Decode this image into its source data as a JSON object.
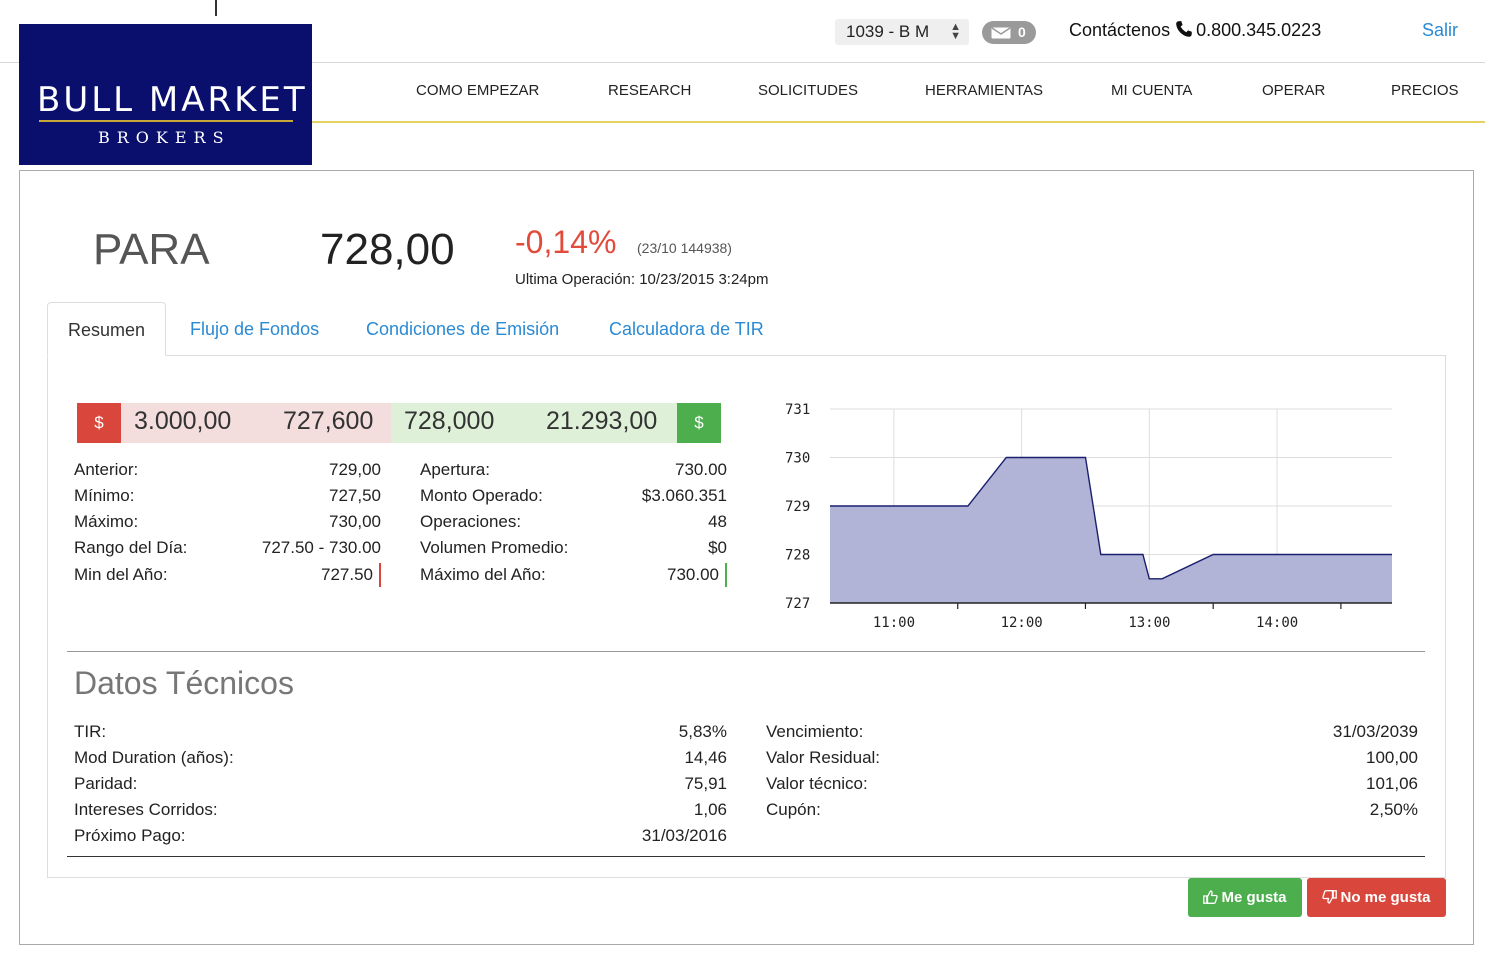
{
  "header": {
    "account": "1039 - B M",
    "messages_count": "0",
    "contact_label": "Contáctenos",
    "phone": "0.800.345.0223",
    "logout": "Salir"
  },
  "logo": {
    "main": "BULL MARKET",
    "sub": "BROKERS",
    "bg_color": "#0a0f6e",
    "accent": "#c8a838"
  },
  "nav": [
    "COMO EMPEZAR",
    "RESEARCH",
    "SOLICITUDES",
    "HERRAMIENTAS",
    "MI CUENTA",
    "OPERAR",
    "PRECIOS"
  ],
  "instrument": {
    "ticker": "PARA",
    "price": "728,00",
    "change": "-0,14%",
    "change_meta": "(23/10 144938)",
    "last_operation": "Ultima Operación: 10/23/2015 3:24pm"
  },
  "tabs": [
    "Resumen",
    "Flujo de Fondos",
    "Condiciones de Emisión",
    "Calculadora de TIR"
  ],
  "quote": {
    "sell_icon": "$",
    "bid_qty": "3.000,00",
    "bid_price": "727,600",
    "ask_price": "728,000",
    "ask_qty": "21.293,00",
    "buy_icon": "$"
  },
  "stats_left": [
    {
      "label": "Anterior:",
      "value": "729,00"
    },
    {
      "label": "Mínimo:",
      "value": "727,50"
    },
    {
      "label": "Máximo:",
      "value": "730,00"
    },
    {
      "label": "Rango del Día:",
      "value": "727.50 - 730.00"
    },
    {
      "label": "Min del Año:",
      "value": "727.50"
    }
  ],
  "stats_right": [
    {
      "label": "Apertura:",
      "value": "730.00"
    },
    {
      "label": "Monto Operado:",
      "value": "$3.060.351"
    },
    {
      "label": "Operaciones:",
      "value": "48"
    },
    {
      "label": "Volumen Promedio:",
      "value": "$0"
    },
    {
      "label": "Máximo del Año:",
      "value": "730.00"
    }
  ],
  "chart_data": {
    "type": "area",
    "ylim": [
      727,
      731
    ],
    "yticks": [
      "727",
      "728",
      "729",
      "730",
      "731"
    ],
    "xticks": [
      "11:00",
      "12:00",
      "13:00",
      "14:00"
    ],
    "xlim": [
      10.5,
      14.9
    ],
    "x": [
      10.5,
      11.58,
      11.88,
      12.5,
      12.62,
      12.95,
      13.0,
      13.1,
      13.5,
      14.9
    ],
    "values": [
      729.0,
      729.0,
      730.0,
      730.0,
      728.0,
      728.0,
      727.5,
      727.5,
      728.0,
      728.0
    ],
    "color": "#b1b4d6",
    "line_color": "#1a1f6e",
    "grid": true
  },
  "technical": {
    "title": "Datos Técnicos",
    "left": [
      {
        "label": "TIR:",
        "value": "5,83%"
      },
      {
        "label": "Mod Duration (años):",
        "value": "14,46"
      },
      {
        "label": "Paridad:",
        "value": "75,91"
      },
      {
        "label": "Intereses Corridos:",
        "value": "1,06"
      },
      {
        "label": "Próximo Pago:",
        "value": "31/03/2016"
      }
    ],
    "right": [
      {
        "label": "Vencimiento:",
        "value": "31/03/2039"
      },
      {
        "label": "Valor Residual:",
        "value": "100,00"
      },
      {
        "label": "Valor técnico:",
        "value": "101,06"
      },
      {
        "label": "Cupón:",
        "value": "2,50%"
      }
    ]
  },
  "feedback": {
    "like": "Me gusta",
    "dislike": "No me gusta"
  }
}
